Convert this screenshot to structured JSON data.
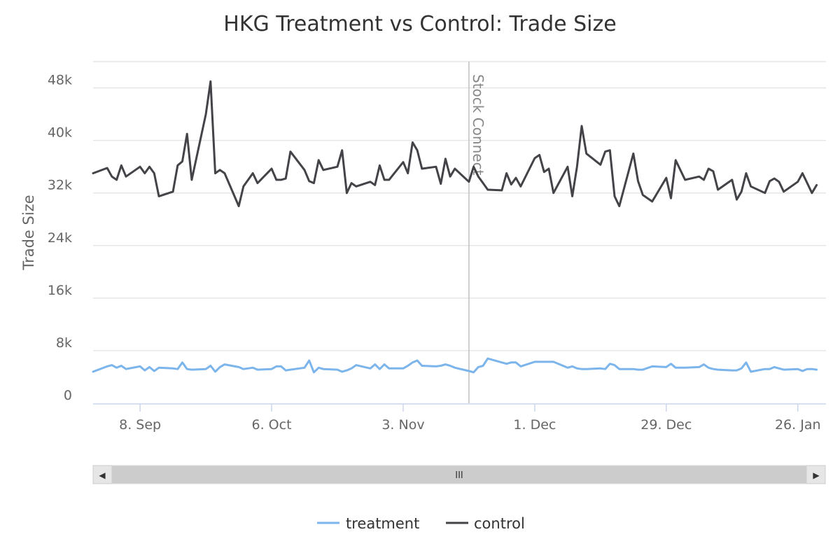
{
  "chart_data": {
    "type": "line",
    "title": "HKG Treatment vs Control: Trade Size",
    "ylabel": "Trade Size",
    "xlabel": "",
    "ylim": [
      0,
      52000
    ],
    "yticks": [
      0,
      8000,
      16000,
      24000,
      32000,
      40000,
      48000
    ],
    "ytick_labels": [
      "0",
      "8k",
      "16k",
      "24k",
      "32k",
      "40k",
      "48k"
    ],
    "x_range": [
      "2014-08-29",
      "2015-02-01"
    ],
    "xticks": [
      {
        "date": "2014-09-08",
        "label": "8. Sep"
      },
      {
        "date": "2014-10-06",
        "label": "6. Oct"
      },
      {
        "date": "2014-11-03",
        "label": "3. Nov"
      },
      {
        "date": "2014-12-01",
        "label": "1. Dec"
      },
      {
        "date": "2014-12-29",
        "label": "29. Dec"
      },
      {
        "date": "2015-01-26",
        "label": "26. Jan"
      }
    ],
    "plot_line": {
      "date": "2014-11-17",
      "label": "Stock Connect",
      "color": "#c0c0c0"
    },
    "grid": true,
    "legend_position": "bottom-center",
    "series": [
      {
        "name": "treatment",
        "color": "#7cb5ec",
        "points": [
          [
            "2014-08-29",
            4800
          ],
          [
            "2014-09-01",
            5600
          ],
          [
            "2014-09-02",
            5800
          ],
          [
            "2014-09-03",
            5400
          ],
          [
            "2014-09-04",
            5700
          ],
          [
            "2014-09-05",
            5200
          ],
          [
            "2014-09-08",
            5600
          ],
          [
            "2014-09-09",
            5000
          ],
          [
            "2014-09-10",
            5500
          ],
          [
            "2014-09-11",
            4900
          ],
          [
            "2014-09-12",
            5400
          ],
          [
            "2014-09-15",
            5300
          ],
          [
            "2014-09-16",
            5200
          ],
          [
            "2014-09-17",
            6200
          ],
          [
            "2014-09-18",
            5200
          ],
          [
            "2014-09-19",
            5100
          ],
          [
            "2014-09-22",
            5200
          ],
          [
            "2014-09-23",
            5700
          ],
          [
            "2014-09-24",
            4800
          ],
          [
            "2014-09-25",
            5500
          ],
          [
            "2014-09-26",
            5900
          ],
          [
            "2014-09-29",
            5500
          ],
          [
            "2014-09-30",
            5200
          ],
          [
            "2014-10-02",
            5400
          ],
          [
            "2014-10-03",
            5100
          ],
          [
            "2014-10-06",
            5200
          ],
          [
            "2014-10-07",
            5600
          ],
          [
            "2014-10-08",
            5600
          ],
          [
            "2014-10-09",
            5000
          ],
          [
            "2014-10-10",
            5100
          ],
          [
            "2014-10-13",
            5400
          ],
          [
            "2014-10-14",
            6500
          ],
          [
            "2014-10-15",
            4700
          ],
          [
            "2014-10-16",
            5400
          ],
          [
            "2014-10-17",
            5200
          ],
          [
            "2014-10-20",
            5100
          ],
          [
            "2014-10-21",
            4800
          ],
          [
            "2014-10-22",
            5000
          ],
          [
            "2014-10-23",
            5300
          ],
          [
            "2014-10-24",
            5800
          ],
          [
            "2014-10-27",
            5300
          ],
          [
            "2014-10-28",
            5900
          ],
          [
            "2014-10-29",
            5200
          ],
          [
            "2014-10-30",
            5900
          ],
          [
            "2014-10-31",
            5300
          ],
          [
            "2014-11-03",
            5300
          ],
          [
            "2014-11-04",
            5700
          ],
          [
            "2014-11-05",
            6200
          ],
          [
            "2014-11-06",
            6500
          ],
          [
            "2014-11-07",
            5700
          ],
          [
            "2014-11-10",
            5600
          ],
          [
            "2014-11-11",
            5700
          ],
          [
            "2014-11-12",
            5900
          ],
          [
            "2014-11-13",
            5700
          ],
          [
            "2014-11-14",
            5400
          ],
          [
            "2014-11-17",
            4900
          ],
          [
            "2014-11-18",
            4700
          ],
          [
            "2014-11-19",
            5500
          ],
          [
            "2014-11-20",
            5700
          ],
          [
            "2014-11-21",
            6800
          ],
          [
            "2014-11-24",
            6200
          ],
          [
            "2014-11-25",
            6000
          ],
          [
            "2014-11-26",
            6200
          ],
          [
            "2014-11-27",
            6200
          ],
          [
            "2014-11-28",
            5600
          ],
          [
            "2014-12-01",
            6300
          ],
          [
            "2014-12-02",
            6300
          ],
          [
            "2014-12-03",
            6300
          ],
          [
            "2014-12-04",
            6300
          ],
          [
            "2014-12-05",
            6300
          ],
          [
            "2014-12-08",
            5400
          ],
          [
            "2014-12-09",
            5600
          ],
          [
            "2014-12-10",
            5300
          ],
          [
            "2014-12-11",
            5200
          ],
          [
            "2014-12-12",
            5200
          ],
          [
            "2014-12-15",
            5300
          ],
          [
            "2014-12-16",
            5200
          ],
          [
            "2014-12-17",
            6000
          ],
          [
            "2014-12-18",
            5800
          ],
          [
            "2014-12-19",
            5200
          ],
          [
            "2014-12-22",
            5200
          ],
          [
            "2014-12-23",
            5100
          ],
          [
            "2014-12-24",
            5100
          ],
          [
            "2014-12-26",
            5600
          ],
          [
            "2014-12-29",
            5500
          ],
          [
            "2014-12-30",
            6000
          ],
          [
            "2014-12-31",
            5400
          ],
          [
            "2015-01-02",
            5400
          ],
          [
            "2015-01-05",
            5500
          ],
          [
            "2015-01-06",
            5900
          ],
          [
            "2015-01-07",
            5400
          ],
          [
            "2015-01-08",
            5200
          ],
          [
            "2015-01-09",
            5100
          ],
          [
            "2015-01-12",
            5000
          ],
          [
            "2015-01-13",
            5000
          ],
          [
            "2015-01-14",
            5300
          ],
          [
            "2015-01-15",
            6200
          ],
          [
            "2015-01-16",
            4800
          ],
          [
            "2015-01-19",
            5200
          ],
          [
            "2015-01-20",
            5200
          ],
          [
            "2015-01-21",
            5500
          ],
          [
            "2015-01-22",
            5300
          ],
          [
            "2015-01-23",
            5100
          ],
          [
            "2015-01-26",
            5200
          ],
          [
            "2015-01-27",
            4900
          ],
          [
            "2015-01-28",
            5200
          ],
          [
            "2015-01-29",
            5200
          ],
          [
            "2015-01-30",
            5100
          ]
        ]
      },
      {
        "name": "control",
        "color": "#434348",
        "points": [
          [
            "2014-08-29",
            35000
          ],
          [
            "2014-09-01",
            35800
          ],
          [
            "2014-09-02",
            34500
          ],
          [
            "2014-09-03",
            34000
          ],
          [
            "2014-09-04",
            36200
          ],
          [
            "2014-09-05",
            34500
          ],
          [
            "2014-09-08",
            36000
          ],
          [
            "2014-09-09",
            35000
          ],
          [
            "2014-09-10",
            36000
          ],
          [
            "2014-09-11",
            35000
          ],
          [
            "2014-09-12",
            31500
          ],
          [
            "2014-09-15",
            32200
          ],
          [
            "2014-09-16",
            36200
          ],
          [
            "2014-09-17",
            36800
          ],
          [
            "2014-09-18",
            41000
          ],
          [
            "2014-09-19",
            34000
          ],
          [
            "2014-09-22",
            44000
          ],
          [
            "2014-09-23",
            49000
          ],
          [
            "2014-09-24",
            35000
          ],
          [
            "2014-09-25",
            35500
          ],
          [
            "2014-09-26",
            35000
          ],
          [
            "2014-09-29",
            30000
          ],
          [
            "2014-09-30",
            33000
          ],
          [
            "2014-10-02",
            35000
          ],
          [
            "2014-10-03",
            33500
          ],
          [
            "2014-10-06",
            35700
          ],
          [
            "2014-10-07",
            34000
          ],
          [
            "2014-10-08",
            34000
          ],
          [
            "2014-10-09",
            34200
          ],
          [
            "2014-10-10",
            38300
          ],
          [
            "2014-10-13",
            35500
          ],
          [
            "2014-10-14",
            33800
          ],
          [
            "2014-10-15",
            33500
          ],
          [
            "2014-10-16",
            37000
          ],
          [
            "2014-10-17",
            35500
          ],
          [
            "2014-10-20",
            36000
          ],
          [
            "2014-10-21",
            38500
          ],
          [
            "2014-10-22",
            32000
          ],
          [
            "2014-10-23",
            33500
          ],
          [
            "2014-10-24",
            33000
          ],
          [
            "2014-10-27",
            33700
          ],
          [
            "2014-10-28",
            33200
          ],
          [
            "2014-10-29",
            36200
          ],
          [
            "2014-10-30",
            34000
          ],
          [
            "2014-10-31",
            34000
          ],
          [
            "2014-11-03",
            36700
          ],
          [
            "2014-11-04",
            35000
          ],
          [
            "2014-11-05",
            39700
          ],
          [
            "2014-11-06",
            38500
          ],
          [
            "2014-11-07",
            35700
          ],
          [
            "2014-11-10",
            36000
          ],
          [
            "2014-11-11",
            33400
          ],
          [
            "2014-11-12",
            37200
          ],
          [
            "2014-11-13",
            34500
          ],
          [
            "2014-11-14",
            35700
          ],
          [
            "2014-11-17",
            33700
          ],
          [
            "2014-11-18",
            36000
          ],
          [
            "2014-11-19",
            34500
          ],
          [
            "2014-11-20",
            33500
          ],
          [
            "2014-11-21",
            32500
          ],
          [
            "2014-11-24",
            32400
          ],
          [
            "2014-11-25",
            35000
          ],
          [
            "2014-11-26",
            33300
          ],
          [
            "2014-11-27",
            34300
          ],
          [
            "2014-11-28",
            33000
          ],
          [
            "2014-12-01",
            37300
          ],
          [
            "2014-12-02",
            37800
          ],
          [
            "2014-12-03",
            35200
          ],
          [
            "2014-12-04",
            35700
          ],
          [
            "2014-12-05",
            32000
          ],
          [
            "2014-12-08",
            36000
          ],
          [
            "2014-12-09",
            31500
          ],
          [
            "2014-12-10",
            36000
          ],
          [
            "2014-12-11",
            42200
          ],
          [
            "2014-12-12",
            38000
          ],
          [
            "2014-12-15",
            36300
          ],
          [
            "2014-12-16",
            38300
          ],
          [
            "2014-12-17",
            38500
          ],
          [
            "2014-12-18",
            31500
          ],
          [
            "2014-12-19",
            30000
          ],
          [
            "2014-12-22",
            38000
          ],
          [
            "2014-12-23",
            33800
          ],
          [
            "2014-12-24",
            31700
          ],
          [
            "2014-12-26",
            30700
          ],
          [
            "2014-12-29",
            34300
          ],
          [
            "2014-12-30",
            31200
          ],
          [
            "2014-12-31",
            37000
          ],
          [
            "2015-01-02",
            34000
          ],
          [
            "2015-01-05",
            34500
          ],
          [
            "2015-01-06",
            34000
          ],
          [
            "2015-01-07",
            35700
          ],
          [
            "2015-01-08",
            35300
          ],
          [
            "2015-01-09",
            32500
          ],
          [
            "2015-01-12",
            34000
          ],
          [
            "2015-01-13",
            31000
          ],
          [
            "2015-01-14",
            32200
          ],
          [
            "2015-01-15",
            35000
          ],
          [
            "2015-01-16",
            33000
          ],
          [
            "2015-01-19",
            32000
          ],
          [
            "2015-01-20",
            33800
          ],
          [
            "2015-01-21",
            34200
          ],
          [
            "2015-01-22",
            33700
          ],
          [
            "2015-01-23",
            32200
          ],
          [
            "2015-01-26",
            33700
          ],
          [
            "2015-01-27",
            35000
          ],
          [
            "2015-01-28",
            33500
          ],
          [
            "2015-01-29",
            32000
          ],
          [
            "2015-01-30",
            33200
          ]
        ]
      }
    ]
  },
  "scrollbar": {
    "left_arrow": "◀",
    "right_arrow": "▶",
    "grip": "III"
  }
}
